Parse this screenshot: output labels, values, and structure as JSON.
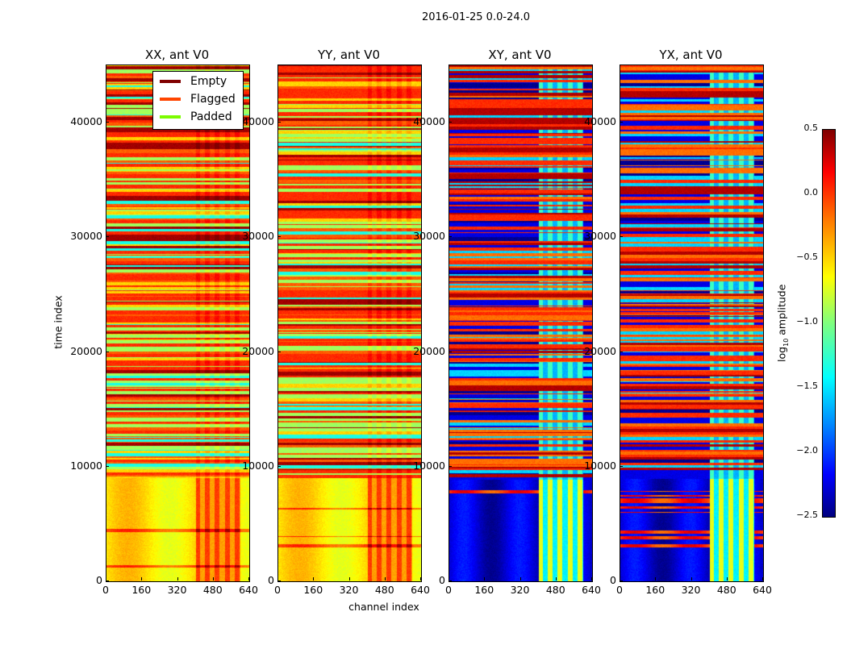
{
  "chart_data": {
    "type": "heatmap",
    "title": "2016-01-25 0.0-24.0",
    "xlabel": "channel index",
    "ylabel": "time index",
    "xlim": [
      0,
      640
    ],
    "ylim": [
      0,
      45000
    ],
    "xticks": [
      "0",
      "160",
      "320",
      "480",
      "640"
    ],
    "yticks": [
      "0",
      "10000",
      "20000",
      "30000",
      "40000"
    ],
    "panels": [
      {
        "title": "XX, ant V0",
        "kind": "parallel"
      },
      {
        "title": "YY, ant V0",
        "kind": "parallel"
      },
      {
        "title": "XY, ant V0",
        "kind": "cross"
      },
      {
        "title": "YX, ant V0",
        "kind": "cross"
      }
    ],
    "legend": {
      "placement": "top-right of first panel",
      "entries": [
        {
          "label": "Empty",
          "color": "#800000"
        },
        {
          "label": "Flagged",
          "color": "#ff4500"
        },
        {
          "label": "Padded",
          "color": "#7cfc00"
        }
      ]
    },
    "colorbar": {
      "label": "log10 amplitude",
      "label_main": "log",
      "label_sub": "10",
      "label_rest": " amplitude",
      "colormap": "jet",
      "range": [
        -2.5,
        0.5
      ],
      "ticks": [
        "0.5",
        "0.0",
        "−0.5",
        "−1.0",
        "−1.5",
        "−2.0",
        "−2.5"
      ]
    }
  }
}
